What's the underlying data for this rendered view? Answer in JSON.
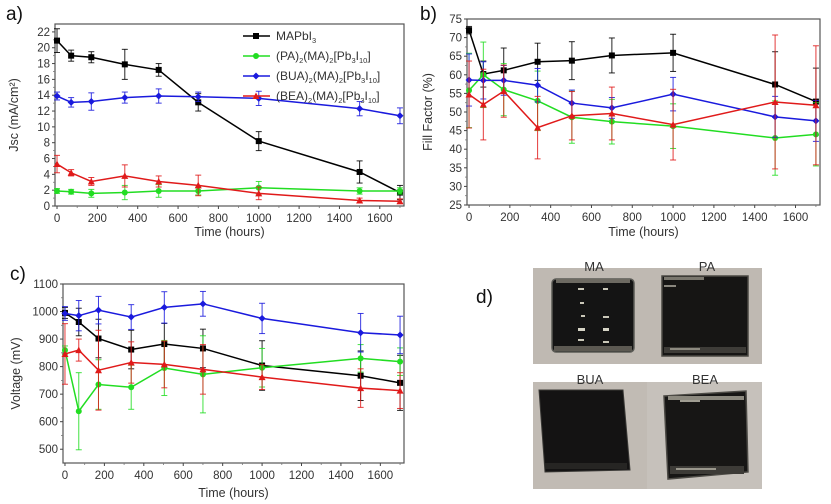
{
  "figure": {
    "panel_labels": [
      "a)",
      "b)",
      "c)",
      "d)"
    ]
  },
  "series_meta": [
    {
      "name": "MAPbI3",
      "legend_html": [
        "MAPbI",
        "3",
        "",
        ""
      ],
      "color": "#000000",
      "marker": "square"
    },
    {
      "name": "(PA)2(MA)2[Pb3I10]",
      "color": "#22dd22",
      "marker": "circle"
    },
    {
      "name": "(BUA)2(MA)2[Pb3I10]",
      "color": "#1a1add",
      "marker": "diamond"
    },
    {
      "name": "(BEA)2(MA)2[Pb3I10]",
      "color": "#e01a1a",
      "marker": "triangle"
    }
  ],
  "legend": {
    "entries": [
      {
        "parts": [
          {
            "t": "MAPbI",
            "s": false
          },
          {
            "t": "3",
            "s": true
          }
        ]
      },
      {
        "parts": [
          {
            "t": "(PA)",
            "s": false
          },
          {
            "t": "2",
            "s": true
          },
          {
            "t": "(MA)",
            "s": false
          },
          {
            "t": "2",
            "s": true
          },
          {
            "t": "[Pb",
            "s": false
          },
          {
            "t": "3",
            "s": true
          },
          {
            "t": "I",
            "s": false
          },
          {
            "t": "10",
            "s": true
          },
          {
            "t": "]",
            "s": false
          }
        ]
      },
      {
        "parts": [
          {
            "t": "(BUA)",
            "s": false
          },
          {
            "t": "2",
            "s": true
          },
          {
            "t": "(MA)",
            "s": false
          },
          {
            "t": "2",
            "s": true
          },
          {
            "t": "[Pb",
            "s": false
          },
          {
            "t": "3",
            "s": true
          },
          {
            "t": "I",
            "s": false
          },
          {
            "t": "10",
            "s": true
          },
          {
            "t": "]",
            "s": false
          }
        ]
      },
      {
        "parts": [
          {
            "t": "(BEA)",
            "s": false
          },
          {
            "t": "2",
            "s": true
          },
          {
            "t": "(MA)",
            "s": false
          },
          {
            "t": "2",
            "s": true
          },
          {
            "t": "[Pb",
            "s": false
          },
          {
            "t": "3",
            "s": true
          },
          {
            "t": "I",
            "s": false
          },
          {
            "t": "10",
            "s": true
          },
          {
            "t": "]",
            "s": false
          }
        ]
      }
    ]
  },
  "chart_data": [
    {
      "id": "a",
      "type": "line",
      "title": "",
      "xlabel": "Time (hours)",
      "ylabel": "Jsc (mA/cm²)",
      "xlim": [
        -10,
        1720
      ],
      "ylim": [
        0,
        23
      ],
      "xticks": [
        0,
        200,
        400,
        600,
        800,
        1000,
        1200,
        1400,
        1600
      ],
      "yticks": [
        0,
        2,
        4,
        6,
        8,
        10,
        12,
        14,
        16,
        18,
        20,
        22
      ],
      "legend_position": "top-right",
      "grid": false,
      "x": [
        0,
        70,
        170,
        336,
        504,
        700,
        1000,
        1500,
        1700
      ],
      "series": [
        {
          "name": "MAPbI3",
          "values": [
            20.9,
            19.0,
            18.8,
            17.9,
            17.2,
            13.1,
            8.2,
            4.3,
            1.7
          ],
          "errors": [
            1.5,
            0.7,
            0.7,
            1.9,
            0.8,
            1.1,
            1.2,
            1.4,
            0.9
          ]
        },
        {
          "name": "(PA)2(MA)2[Pb3I10]",
          "values": [
            1.9,
            1.8,
            1.6,
            1.7,
            1.9,
            1.9,
            2.3,
            1.9,
            1.9
          ],
          "errors": [
            0.3,
            0.3,
            0.5,
            0.9,
            0.8,
            0.5,
            0.8,
            0.4,
            0.4
          ]
        },
        {
          "name": "(BUA)2(MA)2[Pb3I10]",
          "values": [
            13.9,
            13.1,
            13.2,
            13.7,
            13.9,
            13.8,
            13.6,
            12.3,
            11.4
          ],
          "errors": [
            0.5,
            0.6,
            1.1,
            0.7,
            0.9,
            0.6,
            0.9,
            0.9,
            1.0
          ]
        },
        {
          "name": "(BEA)2(MA)2[Pb3I10]",
          "values": [
            5.3,
            4.2,
            3.1,
            3.8,
            3.1,
            2.6,
            1.6,
            0.7,
            0.6
          ],
          "errors": [
            1.1,
            0.4,
            0.5,
            1.4,
            0.7,
            1.3,
            0.8,
            0.3,
            0.3
          ]
        }
      ]
    },
    {
      "id": "b",
      "type": "line",
      "title": "",
      "xlabel": "Time (hours)",
      "ylabel": "Fill Factor (%)",
      "xlim": [
        -10,
        1720
      ],
      "ylim": [
        25,
        75
      ],
      "xticks": [
        0,
        200,
        400,
        600,
        800,
        1000,
        1200,
        1400,
        1600
      ],
      "yticks": [
        25,
        30,
        35,
        40,
        45,
        50,
        55,
        60,
        65,
        70,
        75
      ],
      "grid": false,
      "x": [
        0,
        70,
        170,
        336,
        504,
        700,
        1000,
        1500,
        1700
      ],
      "series": [
        {
          "name": "MAPbI3",
          "values": [
            72.0,
            60.2,
            61.2,
            63.5,
            63.8,
            65.2,
            65.9,
            57.4,
            52.8
          ],
          "errors": [
            1.0,
            3.5,
            6.0,
            5.0,
            5.1,
            4.7,
            5.0,
            8.8,
            9.0
          ]
        },
        {
          "name": "(PA)2(MA)2[Pb3I10]",
          "values": [
            55.8,
            60.0,
            56.0,
            53.0,
            48.6,
            47.4,
            46.2,
            43.0,
            44.0
          ],
          "errors": [
            10.0,
            8.8,
            7.0,
            8.0,
            7.0,
            6.0,
            6.0,
            10.0,
            8.5
          ]
        },
        {
          "name": "(BUA)2(MA)2[Pb3I10]",
          "values": [
            58.6,
            58.5,
            58.5,
            57.2,
            52.4,
            51.1,
            54.8,
            48.7,
            47.6
          ],
          "errors": [
            7.0,
            5.0,
            4.0,
            4.5,
            3.5,
            2.8,
            4.5,
            5.5,
            5.5
          ]
        },
        {
          "name": "(BEA)2(MA)2[Pb3I10]",
          "values": [
            54.7,
            52.0,
            55.6,
            45.8,
            49.0,
            49.6,
            46.6,
            52.7,
            51.8
          ],
          "errors": [
            9.0,
            9.5,
            7.0,
            8.4,
            6.5,
            7.1,
            9.5,
            18.0,
            16.0
          ]
        }
      ]
    },
    {
      "id": "c",
      "type": "line",
      "title": "",
      "xlabel": "Time (hours)",
      "ylabel": "Voltage (mV)",
      "xlim": [
        -10,
        1720
      ],
      "ylim": [
        450,
        1100
      ],
      "xticks": [
        0,
        200,
        400,
        600,
        800,
        1000,
        1200,
        1400,
        1600
      ],
      "yticks": [
        500,
        600,
        700,
        800,
        900,
        1000,
        1100
      ],
      "grid": false,
      "x": [
        0,
        70,
        170,
        336,
        504,
        700,
        1000,
        1500,
        1700
      ],
      "series": [
        {
          "name": "MAPbI3",
          "values": [
            995,
            962,
            902,
            862,
            882,
            866,
            804,
            767,
            741
          ],
          "errors": [
            20,
            50,
            70,
            70,
            75,
            70,
            90,
            90,
            100
          ]
        },
        {
          "name": "(PA)2(MA)2[Pb3I10]",
          "values": [
            860,
            638,
            735,
            725,
            795,
            772,
            796,
            830,
            818
          ],
          "errors": [
            15,
            140,
            90,
            80,
            100,
            140,
            70,
            50,
            50
          ]
        },
        {
          "name": "(BUA)2(MA)2[Pb3I10]",
          "values": [
            993,
            985,
            1005,
            980,
            1015,
            1028,
            975,
            923,
            915
          ],
          "errors": [
            25,
            55,
            50,
            45,
            57,
            45,
            55,
            70,
            68
          ]
        },
        {
          "name": "(BEA)2(MA)2[Pb3I10]",
          "values": [
            846,
            860,
            787,
            815,
            808,
            790,
            762,
            722,
            713
          ],
          "errors": [
            110,
            40,
            145,
            75,
            85,
            90,
            45,
            70,
            65
          ]
        }
      ]
    }
  ],
  "photos": {
    "labels": [
      "MA",
      "PA",
      "BUA",
      "BEA"
    ]
  }
}
